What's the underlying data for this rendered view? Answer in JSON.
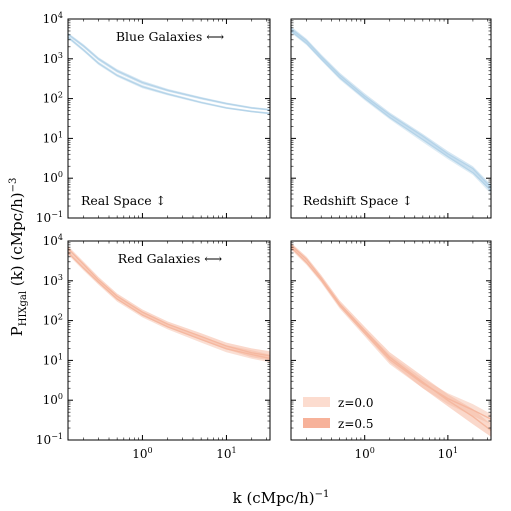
{
  "chart_data": {
    "type": "line",
    "xlabel_main": "k (cMpc/h)",
    "xlabel_exp": "−1",
    "ylabel_main": "P",
    "ylabel_sub": "HIXgal",
    "ylabel_rest": " (k) (cMpc/h)",
    "ylabel_exp": "−3",
    "x_scale": "log",
    "y_scale": "log",
    "xlim": [
      0.13,
      33
    ],
    "ylim": [
      0.1,
      10000
    ],
    "x_ticks": [
      {
        "value": 1,
        "base": "10",
        "exp": "0"
      },
      {
        "value": 10,
        "base": "10",
        "exp": "1"
      }
    ],
    "y_ticks": [
      {
        "value": 0.1,
        "base": "10",
        "exp": "−1"
      },
      {
        "value": 1,
        "base": "10",
        "exp": "0"
      },
      {
        "value": 10,
        "base": "10",
        "exp": "1"
      },
      {
        "value": 100,
        "base": "10",
        "exp": "2"
      },
      {
        "value": 1000,
        "base": "10",
        "exp": "3"
      },
      {
        "value": 10000,
        "base": "10",
        "exp": "4"
      }
    ],
    "row_labels": [
      "Blue Galaxies ⟷",
      "Red Galaxies ⟷"
    ],
    "col_labels": [
      "Real Space ↕",
      "Redshift Space ↕"
    ],
    "legend": {
      "placement": "lower-left",
      "entries": [
        {
          "label": "z=0.0",
          "color": "#fcdccf"
        },
        {
          "label": "z=0.5",
          "color": "#f7b29a"
        }
      ]
    },
    "panels": [
      {
        "name": "blue-real",
        "color": "#b5d4e9",
        "k": [
          0.13,
          0.2,
          0.3,
          0.5,
          1,
          2,
          5,
          10,
          20,
          33
        ],
        "series": [
          {
            "name": "z=0.0",
            "p_lo": [
              3200,
              1500,
              700,
              350,
              180,
              120,
              75,
              55,
              45,
              40
            ],
            "p_hi": [
              3800,
              1800,
              850,
              420,
              220,
              140,
              85,
              62,
              50,
              45
            ]
          },
          {
            "name": "z=0.5",
            "p_lo": [
              3800,
              1900,
              900,
              450,
              230,
              150,
              95,
              70,
              55,
              50
            ],
            "p_hi": [
              4500,
              2300,
              1100,
              550,
              280,
              175,
              110,
              80,
              62,
              55
            ]
          }
        ]
      },
      {
        "name": "blue-redshift",
        "color": "#b5d4e9",
        "k": [
          0.13,
          0.2,
          0.3,
          0.5,
          1,
          2,
          5,
          10,
          20,
          33
        ],
        "series": [
          {
            "name": "z=0.0",
            "p_lo": [
              4500,
              2200,
              900,
              300,
              90,
              30,
              8,
              3.0,
              1.2,
              0.4
            ],
            "p_hi": [
              5500,
              2700,
              1100,
              380,
              115,
              38,
              11,
              4.0,
              1.6,
              0.6
            ]
          },
          {
            "name": "z=0.5",
            "p_lo": [
              5000,
              2500,
              1000,
              340,
              100,
              35,
              10,
              3.5,
              1.5,
              0.5
            ],
            "p_hi": [
              6500,
              3200,
              1300,
              450,
              135,
              45,
              13,
              4.8,
              2.0,
              0.7
            ]
          }
        ]
      },
      {
        "name": "red-real",
        "color": "#f5b8a0",
        "k": [
          0.13,
          0.2,
          0.3,
          0.5,
          1,
          2,
          5,
          10,
          20,
          33
        ],
        "series": [
          {
            "name": "z=0.0",
            "p_lo": [
              4500,
              1800,
              800,
              300,
              120,
              60,
              28,
              16,
              11,
              9
            ],
            "p_hi": [
              5800,
              2400,
              1050,
              400,
              160,
              80,
              40,
              24,
              18,
              14
            ]
          },
          {
            "name": "z=0.5",
            "p_lo": [
              5500,
              2200,
              900,
              350,
              140,
              70,
              33,
              19,
              12,
              10
            ],
            "p_hi": [
              7500,
              3000,
              1250,
              480,
              190,
              95,
              48,
              28,
              20,
              17
            ]
          }
        ]
      },
      {
        "name": "red-redshift",
        "color": "#f5b8a0",
        "k": [
          0.13,
          0.2,
          0.3,
          0.5,
          1,
          2,
          5,
          10,
          20,
          33
        ],
        "series": [
          {
            "name": "z=0.0",
            "p_lo": [
              6000,
              2500,
              900,
              200,
              40,
              8,
              2.0,
              0.8,
              0.4,
              0.25
            ],
            "p_hi": [
              8000,
              3300,
              1200,
              280,
              60,
              14,
              3.5,
              1.5,
              0.8,
              0.45
            ]
          },
          {
            "name": "z=0.5",
            "p_lo": [
              7000,
              3000,
              1000,
              220,
              45,
              9,
              2.0,
              0.7,
              0.25,
              0.12
            ],
            "p_hi": [
              9000,
              4000,
              1400,
              320,
              70,
              16,
              4.0,
              1.4,
              0.6,
              0.25
            ]
          }
        ]
      }
    ]
  }
}
